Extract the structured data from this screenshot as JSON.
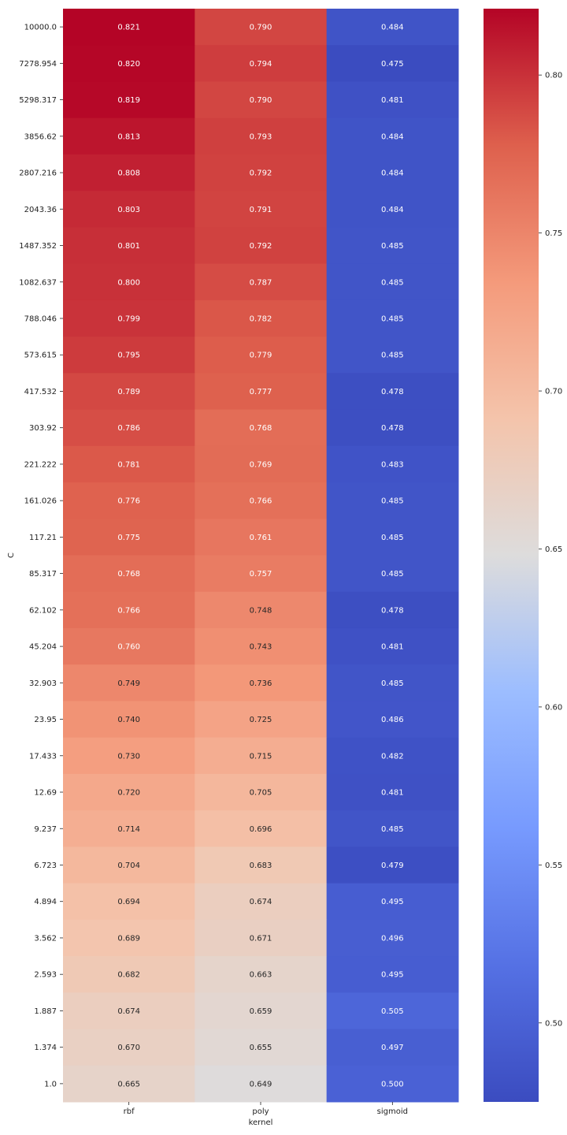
{
  "chart_data": {
    "type": "heatmap",
    "title": "",
    "xlabel": "kernel",
    "ylabel": "C",
    "x_categories": [
      "rbf",
      "poly",
      "sigmoid"
    ],
    "y_categories": [
      "10000.0",
      "7278.954",
      "5298.317",
      "3856.62",
      "2807.216",
      "2043.36",
      "1487.352",
      "1082.637",
      "788.046",
      "573.615",
      "417.532",
      "303.92",
      "221.222",
      "161.026",
      "117.21",
      "85.317",
      "62.102",
      "45.204",
      "32.903",
      "23.95",
      "17.433",
      "12.69",
      "9.237",
      "6.723",
      "4.894",
      "3.562",
      "2.593",
      "1.887",
      "1.374",
      "1.0"
    ],
    "values": [
      [
        0.821,
        0.79,
        0.484
      ],
      [
        0.82,
        0.794,
        0.475
      ],
      [
        0.819,
        0.79,
        0.481
      ],
      [
        0.813,
        0.793,
        0.484
      ],
      [
        0.808,
        0.792,
        0.484
      ],
      [
        0.803,
        0.791,
        0.484
      ],
      [
        0.801,
        0.792,
        0.485
      ],
      [
        0.8,
        0.787,
        0.485
      ],
      [
        0.799,
        0.782,
        0.485
      ],
      [
        0.795,
        0.779,
        0.485
      ],
      [
        0.789,
        0.777,
        0.478
      ],
      [
        0.786,
        0.768,
        0.478
      ],
      [
        0.781,
        0.769,
        0.483
      ],
      [
        0.776,
        0.766,
        0.485
      ],
      [
        0.775,
        0.761,
        0.485
      ],
      [
        0.768,
        0.757,
        0.485
      ],
      [
        0.766,
        0.748,
        0.478
      ],
      [
        0.76,
        0.743,
        0.481
      ],
      [
        0.749,
        0.736,
        0.485
      ],
      [
        0.74,
        0.725,
        0.486
      ],
      [
        0.73,
        0.715,
        0.482
      ],
      [
        0.72,
        0.705,
        0.481
      ],
      [
        0.714,
        0.696,
        0.485
      ],
      [
        0.704,
        0.683,
        0.479
      ],
      [
        0.694,
        0.674,
        0.495
      ],
      [
        0.689,
        0.671,
        0.496
      ],
      [
        0.682,
        0.663,
        0.495
      ],
      [
        0.674,
        0.659,
        0.505
      ],
      [
        0.67,
        0.655,
        0.497
      ],
      [
        0.665,
        0.649,
        0.5
      ]
    ],
    "colormap": "coolwarm",
    "color_range": [
      0.475,
      0.821
    ],
    "colorbar_ticks": [
      0.5,
      0.55,
      0.6,
      0.65,
      0.7,
      0.75,
      0.8
    ],
    "colorbar_tick_labels": [
      "0.50",
      "0.55",
      "0.60",
      "0.65",
      "0.70",
      "0.75",
      "0.80"
    ],
    "value_format": "3 decimals",
    "grid": false,
    "colorbar_position": "right"
  }
}
